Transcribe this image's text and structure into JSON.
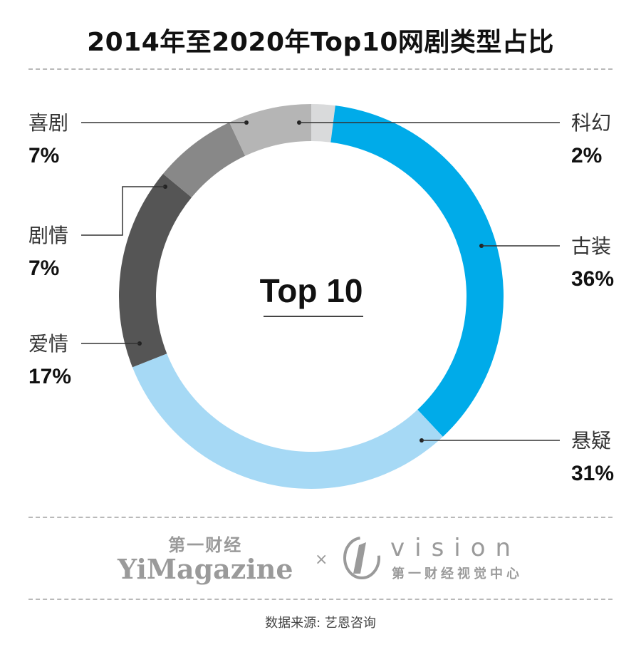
{
  "title": "2014年至2020年Top10网剧类型占比",
  "center_label": "Top 10",
  "chart_data": {
    "type": "donut",
    "title": "2014年至2020年Top10网剧类型占比",
    "slices": [
      {
        "label": "科幻",
        "value": 2,
        "display": "2%",
        "color": "#d9dadb"
      },
      {
        "label": "古装",
        "value": 36,
        "display": "36%",
        "color": "#00abe9"
      },
      {
        "label": "悬疑",
        "value": 31,
        "display": "31%",
        "color": "#a6d9f5"
      },
      {
        "label": "爱情",
        "value": 17,
        "display": "17%",
        "color": "#555555"
      },
      {
        "label": "剧情",
        "value": 7,
        "display": "7%",
        "color": "#888888"
      },
      {
        "label": "喜剧",
        "value": 7,
        "display": "7%",
        "color": "#b5b5b5"
      }
    ]
  },
  "footer": {
    "brand_cn": "第一财经",
    "brand_en": "YiMagazine",
    "cross": "×",
    "vision_en": "vision",
    "vision_cn": "第一财经视觉中心",
    "source": "数据来源: 艺恩咨询"
  }
}
